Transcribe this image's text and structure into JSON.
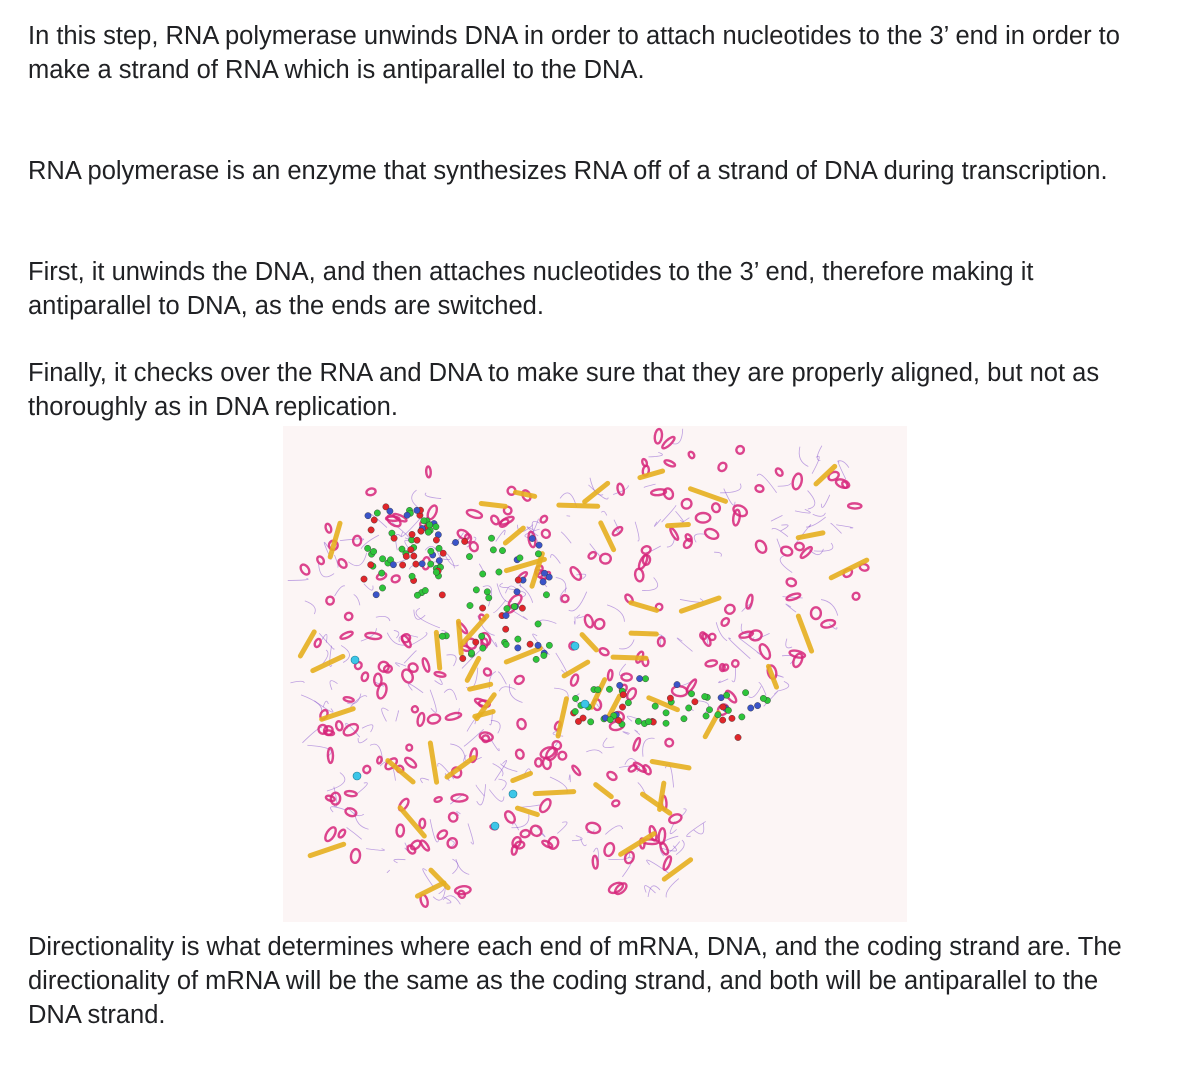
{
  "paragraphs": [
    "In this step, RNA polymerase unwinds DNA in order to attach nucleotides to the 3’ end in order to make a strand of RNA which is antiparallel to the DNA.",
    "RNA polymerase is an enzyme that synthesizes RNA off of a strand of DNA during transcription.",
    "First, it unwinds the DNA, and then attaches nucleotides to the 3’ end, therefore making it antiparallel to DNA, as the ends are switched.",
    "Finally, it checks over the RNA and DNA to make sure that they are properly aligned, but not as thoroughly as in DNA replication.",
    "Directionality is what determines where each end of mRNA, DNA, and the coding strand are. The directionality of mRNA will be the same as the coding strand, and both will be antiparallel to the DNA strand."
  ],
  "figure": {
    "colors": {
      "background": "#fcf5f5",
      "helix": "#d6247a",
      "strand": "#e6b020",
      "coil": "#8a5ad0",
      "nucleic_green": "#2ec43a",
      "nucleic_red": "#e0262a",
      "nucleic_blue": "#3a54c8",
      "ion": "#3cc6e8"
    }
  }
}
